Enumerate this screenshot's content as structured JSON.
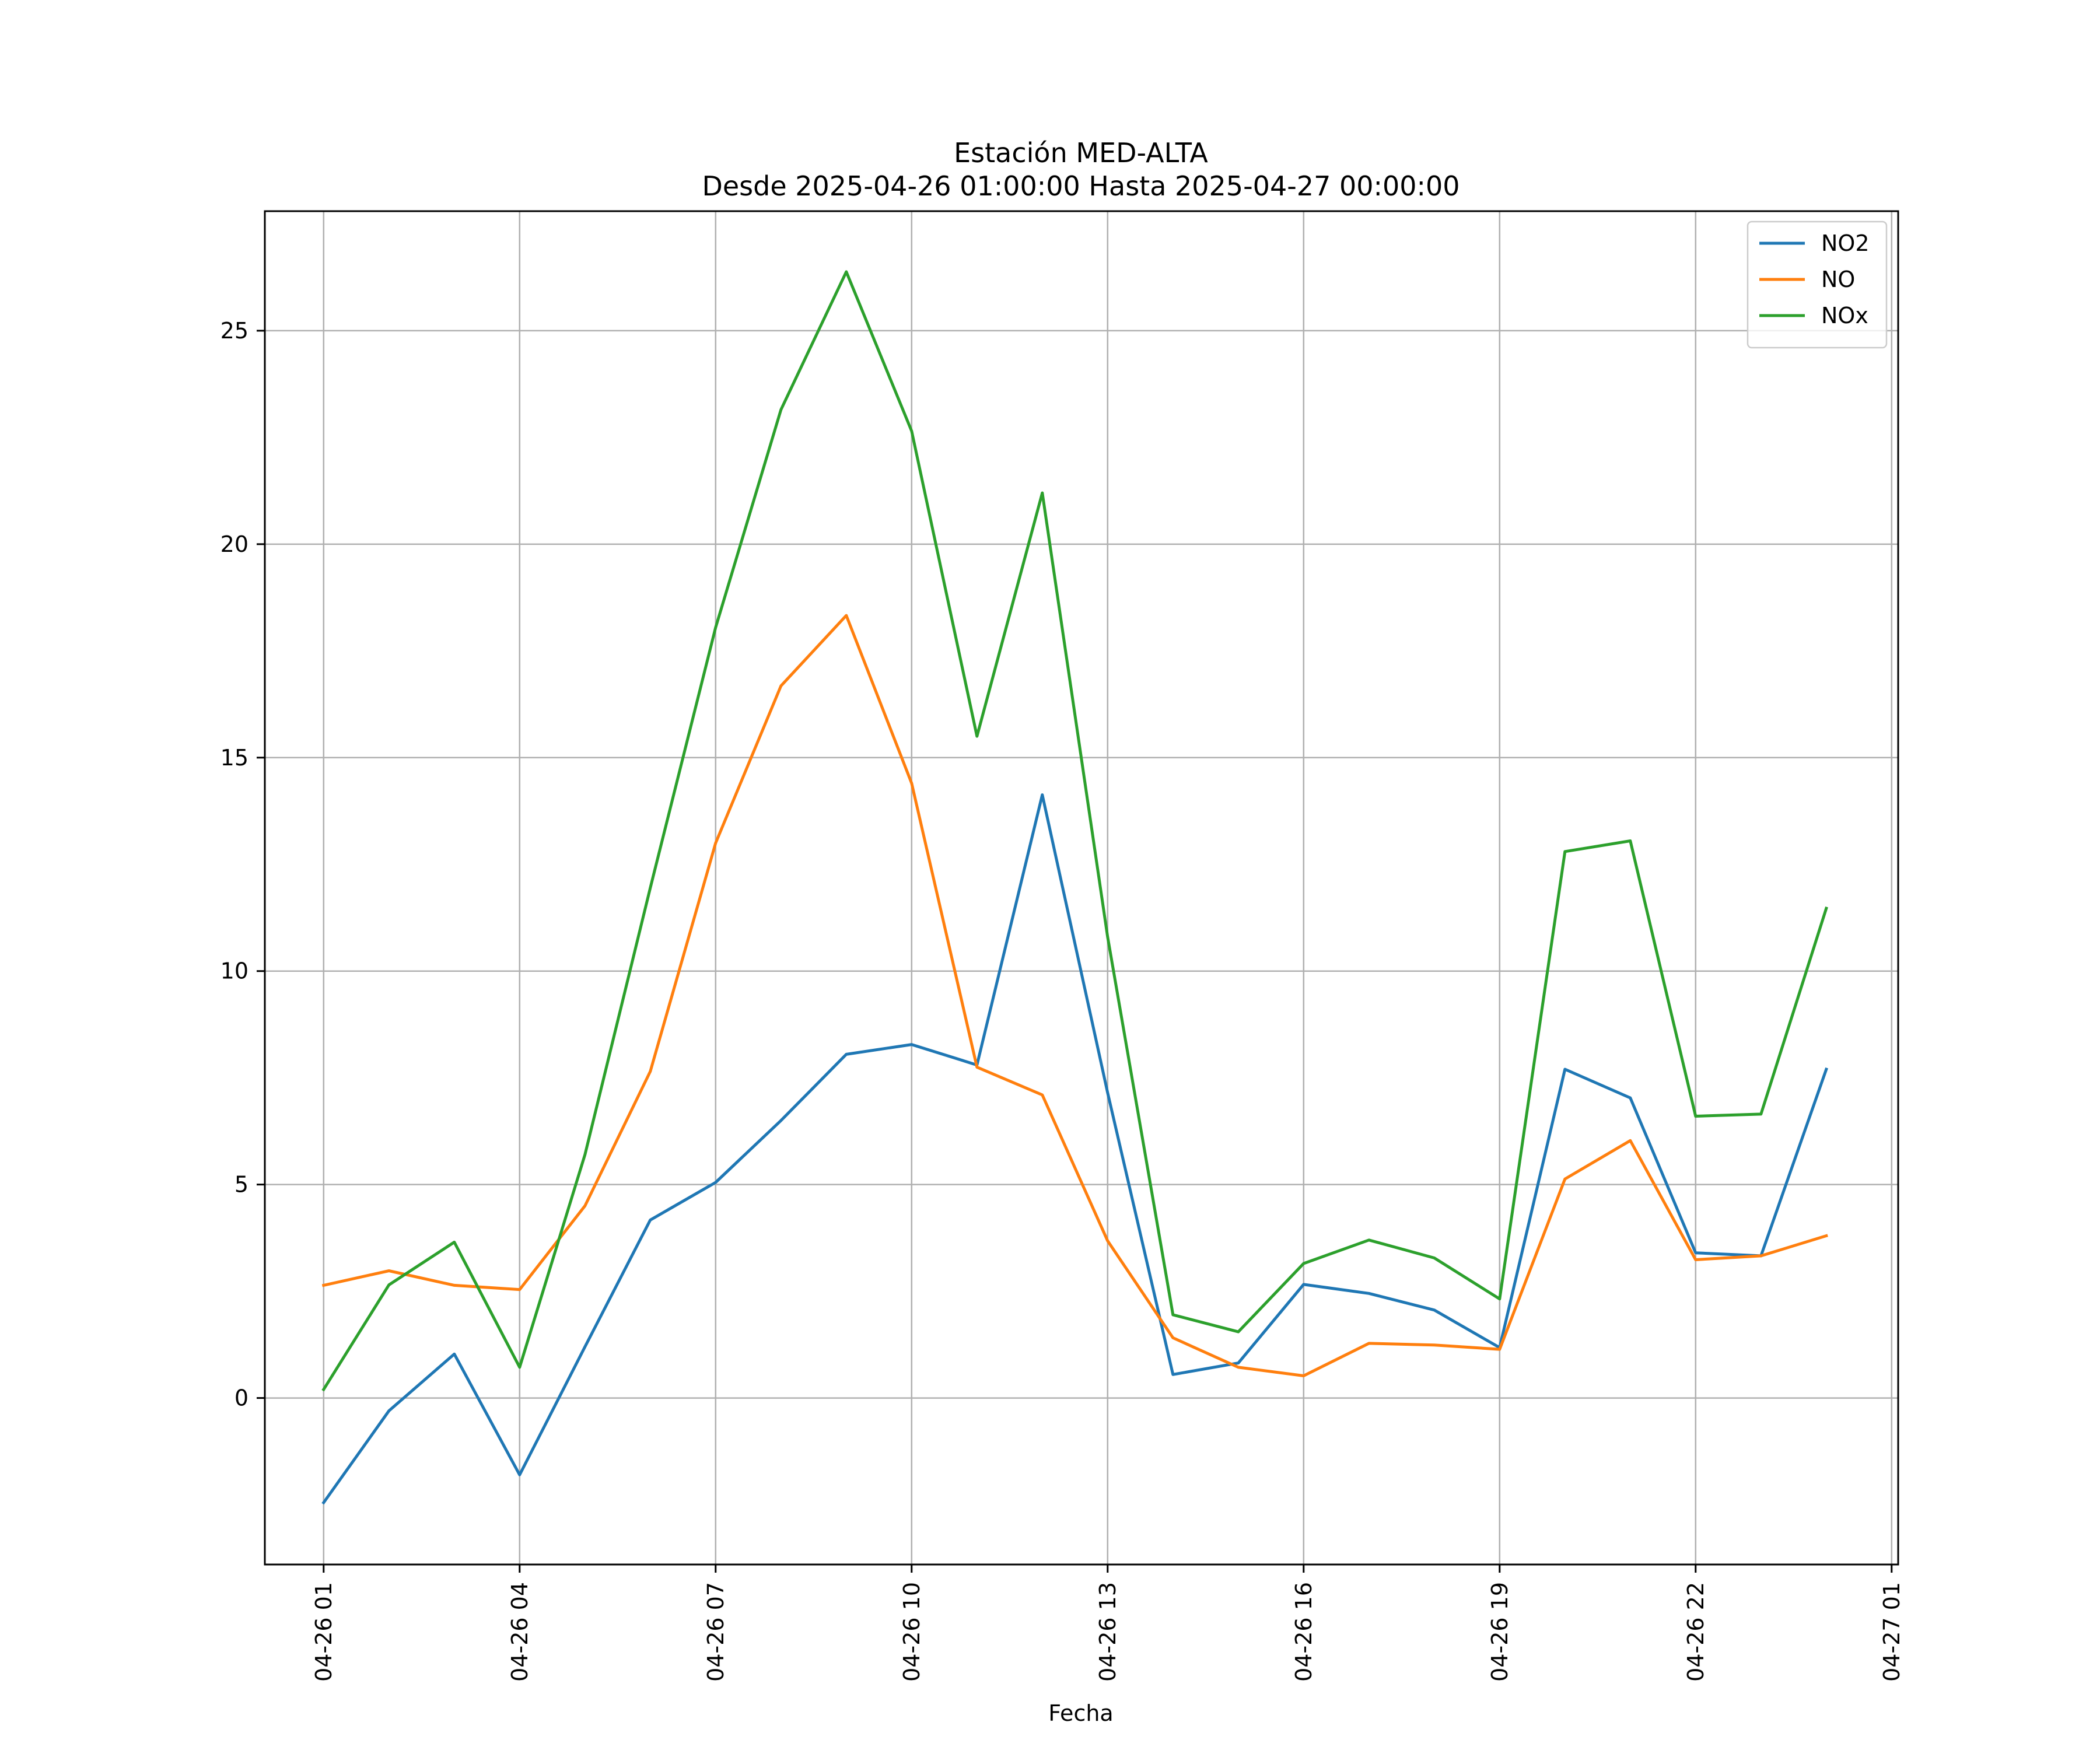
{
  "chart_data": {
    "type": "line",
    "title": "Estación MED-ALTA",
    "subtitle": "Desde 2025-04-26 01:00:00 Hasta 2025-04-27 00:00:00",
    "xlabel": "Fecha",
    "ylabel": "",
    "x": [
      "2025-04-26 01:00",
      "2025-04-26 02:00",
      "2025-04-26 03:00",
      "2025-04-26 04:00",
      "2025-04-26 05:00",
      "2025-04-26 06:00",
      "2025-04-26 07:00",
      "2025-04-26 08:00",
      "2025-04-26 09:00",
      "2025-04-26 10:00",
      "2025-04-26 11:00",
      "2025-04-26 12:00",
      "2025-04-26 13:00",
      "2025-04-26 14:00",
      "2025-04-26 15:00",
      "2025-04-26 16:00",
      "2025-04-26 17:00",
      "2025-04-26 18:00",
      "2025-04-26 19:00",
      "2025-04-26 20:00",
      "2025-04-26 21:00",
      "2025-04-26 22:00",
      "2025-04-26 23:00",
      "2025-04-27 00:00"
    ],
    "xticks": [
      "04-26 01",
      "04-26 04",
      "04-26 07",
      "04-26 10",
      "04-26 13",
      "04-26 16",
      "04-26 19",
      "04-26 22",
      "04-27 01"
    ],
    "yticks": [
      0,
      5,
      10,
      15,
      20,
      25
    ],
    "ylim": [
      -3.9,
      27.8
    ],
    "xlim": [
      "2025-04-26 00:06",
      "2025-04-27 01:06"
    ],
    "grid": true,
    "legend_position": "top-right",
    "series": [
      {
        "name": "NO2",
        "color": "#1f77b4",
        "values": [
          -2.45,
          -0.3,
          1.03,
          -1.8,
          1.2,
          4.17,
          5.05,
          6.5,
          8.05,
          8.28,
          7.8,
          14.13,
          7.15,
          0.55,
          0.82,
          2.66,
          2.45,
          2.06,
          1.18,
          7.7,
          7.03,
          3.4,
          3.33,
          7.7
        ]
      },
      {
        "name": "NO",
        "color": "#ff7f0e",
        "values": [
          2.64,
          2.98,
          2.64,
          2.54,
          4.5,
          7.65,
          13.0,
          16.68,
          18.33,
          14.4,
          7.75,
          7.1,
          3.68,
          1.41,
          0.72,
          0.52,
          1.28,
          1.24,
          1.14,
          5.13,
          6.03,
          3.24,
          3.33,
          3.8
        ]
      },
      {
        "name": "NOx",
        "color": "#2ca02c",
        "values": [
          0.2,
          2.65,
          3.65,
          0.72,
          5.7,
          11.95,
          18.05,
          23.15,
          26.38,
          22.65,
          15.5,
          21.2,
          10.8,
          1.95,
          1.55,
          3.15,
          3.7,
          3.28,
          2.32,
          12.8,
          13.05,
          6.6,
          6.65,
          11.47
        ]
      }
    ]
  }
}
